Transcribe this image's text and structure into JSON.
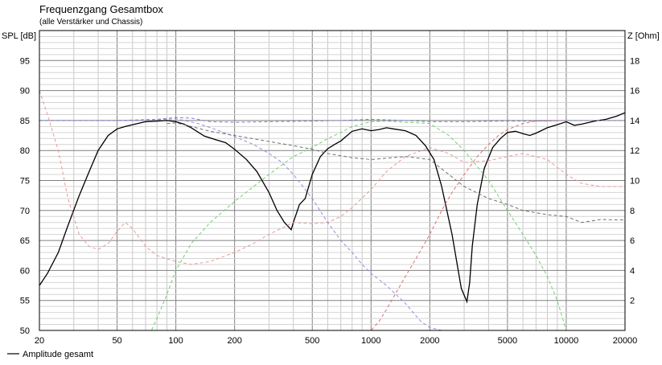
{
  "chart_data": {
    "type": "line",
    "title": "Frequenzgang Gesamtbox",
    "subtitle": "(alle Verstärker und Chassis)",
    "ylabel_left": "SPL [dB]",
    "ylabel_right": "Z [Ohm]",
    "x_scale": "log",
    "xlim": [
      20,
      20000
    ],
    "ylim_left": [
      50,
      100
    ],
    "ylim_right": [
      0,
      20
    ],
    "grid": true,
    "legend_position": "bottom-left",
    "x_ticks": [
      {
        "value": 20,
        "label": "20"
      },
      {
        "value": 50,
        "label": "50"
      },
      {
        "value": 100,
        "label": "100"
      },
      {
        "value": 200,
        "label": "200"
      },
      {
        "value": 500,
        "label": "500"
      },
      {
        "value": 1000,
        "label": "1000"
      },
      {
        "value": 2000,
        "label": "2000"
      },
      {
        "value": 5000,
        "label": "5000"
      },
      {
        "value": 10000,
        "label": "10000"
      },
      {
        "value": 20000,
        "label": "20000"
      }
    ],
    "y_ticks_left": [
      {
        "value": 50,
        "label": "50"
      },
      {
        "value": 55,
        "label": "55"
      },
      {
        "value": 60,
        "label": "60"
      },
      {
        "value": 65,
        "label": "65"
      },
      {
        "value": 70,
        "label": "70"
      },
      {
        "value": 75,
        "label": "75"
      },
      {
        "value": 80,
        "label": "80"
      },
      {
        "value": 85,
        "label": "85"
      },
      {
        "value": 90,
        "label": "90"
      },
      {
        "value": 95,
        "label": "95"
      }
    ],
    "y_ticks_right": [
      {
        "value": 2,
        "label": "2"
      },
      {
        "value": 4,
        "label": "4"
      },
      {
        "value": 6,
        "label": "6"
      },
      {
        "value": 8,
        "label": "8"
      },
      {
        "value": 10,
        "label": "10"
      },
      {
        "value": 12,
        "label": "12"
      },
      {
        "value": 14,
        "label": "14"
      },
      {
        "value": 16,
        "label": "16"
      },
      {
        "value": 18,
        "label": "18"
      }
    ],
    "series": [
      {
        "name": "Amplitude gesamt",
        "color": "#000000",
        "style": "solid",
        "axis": "left",
        "in_legend": true,
        "x": [
          20,
          22,
          25,
          28,
          32,
          36,
          40,
          45,
          50,
          55,
          60,
          70,
          80,
          90,
          100,
          110,
          120,
          140,
          160,
          180,
          200,
          230,
          260,
          300,
          330,
          360,
          390,
          400,
          430,
          460,
          500,
          550,
          600,
          650,
          700,
          800,
          900,
          1000,
          1100,
          1200,
          1300,
          1500,
          1700,
          1900,
          2100,
          2300,
          2600,
          2900,
          3100,
          3200,
          3300,
          3500,
          3800,
          4200,
          4600,
          5000,
          5500,
          6000,
          6500,
          7000,
          8000,
          9000,
          10000,
          11000,
          12000,
          14000,
          16000,
          18000,
          20000
        ],
        "y": [
          57.5,
          59.5,
          63.0,
          67.5,
          72.5,
          76.5,
          80.0,
          82.5,
          83.6,
          84.0,
          84.3,
          84.8,
          84.9,
          85.0,
          84.8,
          84.4,
          83.8,
          82.4,
          81.8,
          81.3,
          80.2,
          78.5,
          76.5,
          73.0,
          70.0,
          68.0,
          66.8,
          68.0,
          71.0,
          72.0,
          76.0,
          79.0,
          80.3,
          81.0,
          81.6,
          83.2,
          83.6,
          83.3,
          83.5,
          83.8,
          83.6,
          83.3,
          82.5,
          80.8,
          78.5,
          74.0,
          66.0,
          57.0,
          54.8,
          58.0,
          64.0,
          71.0,
          77.0,
          80.5,
          82.0,
          83.0,
          83.2,
          82.8,
          82.5,
          82.9,
          83.8,
          84.3,
          84.8,
          84.2,
          84.4,
          84.9,
          85.2,
          85.7,
          86.3
        ]
      },
      {
        "name": "",
        "color": "#e89a9a",
        "style": "dashed",
        "axis": "left",
        "in_legend": false,
        "x": [
          20,
          22,
          25,
          28,
          32,
          36,
          40,
          45,
          50,
          55,
          60,
          70,
          80,
          100,
          120,
          150,
          200,
          250,
          300,
          400,
          500,
          600,
          700,
          800,
          1000,
          1200,
          1500,
          2000,
          2500,
          3000,
          4000,
          5000,
          6000,
          8000,
          10000,
          12000,
          15000,
          20000
        ],
        "y": [
          90.0,
          86.0,
          80.0,
          72.0,
          66.0,
          64.0,
          63.5,
          64.5,
          66.5,
          68.0,
          67.0,
          64.0,
          62.5,
          61.5,
          61.0,
          61.5,
          63.0,
          64.5,
          66.0,
          68.0,
          67.8,
          68.0,
          69.0,
          70.5,
          73.5,
          76.5,
          79.0,
          80.5,
          79.5,
          78.0,
          78.3,
          79.0,
          79.5,
          78.5,
          76.0,
          74.5,
          74.0,
          74.0
        ]
      },
      {
        "name": "",
        "color": "#9090e0",
        "style": "dashed",
        "axis": "left",
        "in_legend": false,
        "x": [
          20,
          30,
          50,
          70,
          100,
          130,
          160,
          200,
          250,
          300,
          350,
          400,
          500,
          600,
          700,
          800,
          900,
          1000,
          1200,
          1500,
          1800,
          2000,
          2300
        ],
        "y": [
          85.0,
          85.0,
          85.0,
          85.0,
          85.3,
          84.5,
          83.5,
          82.3,
          81.0,
          79.5,
          78.0,
          76.0,
          72.0,
          68.0,
          65.0,
          63.0,
          61.0,
          59.5,
          57.5,
          54.5,
          51.5,
          50.5,
          50.0
        ]
      },
      {
        "name": "",
        "color": "#70d070",
        "style": "dashed",
        "axis": "left",
        "in_legend": false,
        "x": [
          20,
          75,
          80,
          90,
          100,
          120,
          150,
          200,
          250,
          300,
          400,
          500,
          600,
          700,
          800,
          1000,
          1200,
          1500,
          2000,
          2500,
          3000,
          4000,
          5000,
          6000,
          7000,
          8000,
          9000,
          10000
        ],
        "y": [
          50.0,
          50.0,
          52.0,
          56.0,
          60.0,
          64.5,
          68.0,
          71.5,
          74.0,
          76.0,
          79.0,
          80.5,
          82.0,
          83.0,
          84.0,
          84.8,
          84.9,
          84.7,
          84.5,
          82.5,
          80.0,
          75.0,
          70.0,
          66.0,
          62.5,
          59.0,
          55.0,
          50.0
        ]
      },
      {
        "name": "",
        "color": "#e07070",
        "style": "dashed",
        "axis": "left",
        "in_legend": false,
        "x": [
          20,
          1000,
          1100,
          1200,
          1300,
          1500,
          1700,
          2000,
          2300,
          2600,
          3000,
          3500,
          4000,
          4500,
          5000,
          6000,
          7000,
          8000,
          10000
        ],
        "y": [
          50.0,
          50.0,
          51.5,
          53.5,
          55.5,
          59.0,
          62.0,
          66.0,
          70.0,
          73.0,
          76.0,
          79.0,
          81.0,
          82.5,
          83.5,
          84.5,
          84.9,
          84.9,
          85.0
        ]
      },
      {
        "name": "",
        "color": "#707070",
        "style": "dashed",
        "axis": "left",
        "in_legend": false,
        "x": [
          90,
          100,
          110,
          120,
          150,
          200,
          300,
          400,
          500,
          600,
          800,
          1000,
          1500,
          2000,
          3000,
          4000,
          5000,
          6000,
          8000,
          10000,
          12000,
          15000,
          20000
        ],
        "y": [
          84.5,
          84.6,
          84.3,
          84.0,
          83.2,
          82.5,
          81.5,
          80.8,
          80.2,
          79.5,
          78.8,
          78.5,
          79.0,
          78.5,
          74.0,
          72.0,
          71.0,
          70.0,
          69.3,
          69.0,
          68.0,
          68.5,
          68.4
        ]
      },
      {
        "name": "",
        "color": "#8080c8",
        "style": "dashed",
        "axis": "left",
        "in_legend": false,
        "x": [
          20,
          50,
          80,
          100,
          120,
          150,
          200,
          300,
          500,
          700,
          1000,
          1500,
          2000,
          3000,
          5000,
          7000,
          10000,
          20000
        ],
        "y": [
          85.0,
          85.0,
          85.2,
          85.5,
          85.4,
          84.8,
          84.7,
          84.8,
          84.9,
          85.0,
          85.2,
          85.0,
          84.8,
          84.8,
          84.9,
          84.9,
          85.0,
          85.0
        ]
      }
    ]
  }
}
